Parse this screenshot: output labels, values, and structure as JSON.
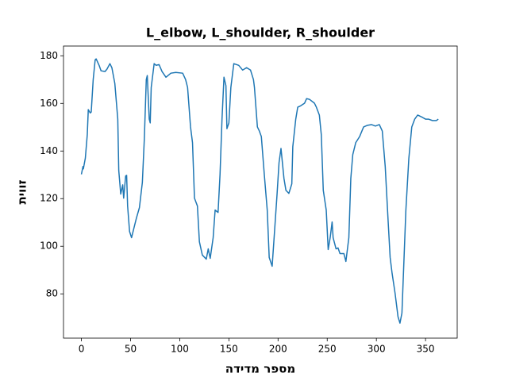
{
  "chart_data": {
    "type": "line",
    "title": "L_elbow, L_shoulder, R_shoulder",
    "xlabel": "מספר מדידה",
    "ylabel": "זווית",
    "color": "#1f77b4",
    "x": [
      0,
      1.6,
      2,
      4,
      6,
      7,
      9,
      10,
      12,
      14,
      15,
      18,
      20,
      24,
      26,
      29,
      31,
      34,
      37,
      38,
      40,
      42,
      43,
      45,
      46,
      47,
      49,
      51,
      54,
      56,
      59,
      62,
      64,
      66,
      67,
      69,
      70,
      71,
      74,
      76,
      79,
      82,
      86,
      91,
      96,
      103,
      106,
      108,
      111,
      113,
      115,
      118,
      120,
      123,
      127,
      129,
      131,
      134,
      136,
      139,
      141,
      143,
      145,
      147,
      148,
      150,
      152,
      155,
      160,
      164,
      168,
      172,
      175,
      176,
      179,
      181,
      183,
      186,
      189,
      191,
      194,
      196,
      199,
      201,
      203,
      206,
      208,
      211,
      214,
      215,
      218,
      220,
      223,
      227,
      229,
      232,
      237,
      239,
      242,
      244,
      246,
      249,
      251,
      253,
      255,
      256,
      259,
      261,
      263,
      267,
      269,
      272,
      274,
      276,
      279,
      283,
      287,
      291,
      295,
      299,
      303,
      306,
      309,
      312,
      314,
      316,
      319,
      320,
      322,
      324,
      326,
      328,
      330,
      333,
      336,
      339,
      342,
      347,
      350,
      353,
      357,
      361,
      363
    ],
    "values": [
      130.2,
      133.5,
      132.5,
      137,
      147,
      157.4,
      156,
      156.4,
      170,
      178.3,
      178.7,
      176,
      173.7,
      173.4,
      174.4,
      176.7,
      175,
      168.4,
      153.4,
      131.8,
      121.9,
      125.8,
      120.2,
      129.5,
      129.8,
      116.9,
      106.2,
      103.6,
      108.6,
      111.9,
      116.2,
      126.8,
      145.1,
      170,
      171.7,
      153.4,
      151.8,
      166.7,
      176.7,
      176,
      176.3,
      173.4,
      171,
      172.7,
      173,
      172.7,
      170,
      166.7,
      150.1,
      143.5,
      120.2,
      116.9,
      101.9,
      96.3,
      94.6,
      98.9,
      94.9,
      103.6,
      115.2,
      114.2,
      130.2,
      153.4,
      171,
      167.4,
      149.4,
      151.8,
      166.7,
      176.7,
      176,
      174,
      175,
      174,
      170,
      166.7,
      150.1,
      148.4,
      146.1,
      130.2,
      115.2,
      95.3,
      91.6,
      103.6,
      121.9,
      135.1,
      141.1,
      128.5,
      123.5,
      122.2,
      126.2,
      141.8,
      153.4,
      158.4,
      159,
      160.1,
      162,
      161.7,
      160.1,
      158.4,
      155.1,
      146.8,
      123.5,
      115.2,
      98.6,
      103.6,
      110.2,
      103.6,
      98.9,
      99.3,
      96.9,
      96.9,
      93.6,
      103.6,
      128.5,
      138.5,
      143.5,
      146.1,
      150.1,
      150.8,
      151.1,
      150.5,
      151.1,
      148.4,
      133.5,
      110.2,
      95.3,
      88.6,
      80.3,
      77,
      70.4,
      67.7,
      72,
      93.6,
      115.2,
      136.8,
      150.1,
      153.4,
      155.1,
      154.1,
      153.4,
      153.4,
      152.8,
      152.8,
      153.4
    ],
    "xlim": [
      -18.2,
      382.2
    ],
    "ylim": [
      61.4,
      184.1
    ],
    "xticks": [
      0,
      50,
      100,
      150,
      200,
      250,
      300,
      350
    ],
    "yticks": [
      80,
      100,
      120,
      140,
      160,
      180
    ]
  }
}
